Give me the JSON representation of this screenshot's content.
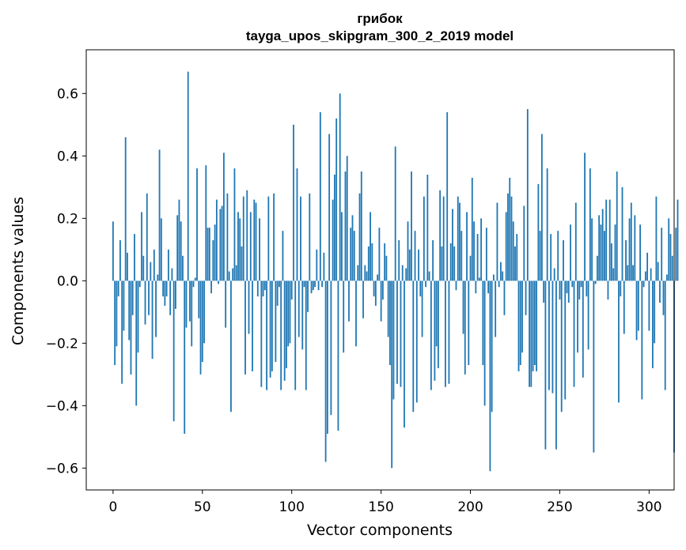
{
  "chart_data": {
    "type": "bar",
    "title": "грибок",
    "subtitle": "tayga_upos_skipgram_300_2_2019 model",
    "xlabel": "Vector components",
    "ylabel": "Components values",
    "xlim": [
      -15,
      314
    ],
    "ylim": [
      -0.67,
      0.74
    ],
    "xticks": [
      0,
      50,
      100,
      150,
      200,
      250,
      300
    ],
    "xtick_labels": [
      "0",
      "50",
      "100",
      "150",
      "200",
      "250",
      "300"
    ],
    "yticks": [
      -0.6,
      -0.4,
      -0.2,
      0.0,
      0.2,
      0.4,
      0.6
    ],
    "ytick_labels": [
      "−0.6",
      "−0.4",
      "−0.2",
      "0.0",
      "0.2",
      "0.4",
      "0.6"
    ],
    "bar_color": "#1f77b4",
    "series": [
      {
        "name": "грибок",
        "values": [
          0.19,
          -0.27,
          -0.21,
          -0.05,
          0.13,
          -0.33,
          -0.16,
          0.46,
          0.09,
          -0.19,
          -0.3,
          -0.11,
          0.15,
          -0.4,
          -0.23,
          -0.02,
          0.22,
          0.08,
          -0.14,
          0.28,
          -0.11,
          0.06,
          -0.25,
          0.1,
          -0.18,
          0.02,
          0.42,
          0.2,
          -0.05,
          -0.08,
          -0.05,
          0.1,
          -0.11,
          0.04,
          -0.45,
          -0.09,
          0.21,
          0.26,
          0.19,
          0.08,
          -0.49,
          -0.15,
          0.67,
          -0.13,
          -0.21,
          -0.02,
          0.01,
          0.36,
          -0.12,
          -0.3,
          -0.26,
          -0.2,
          0.37,
          0.17,
          0.17,
          -0.04,
          0.13,
          0.18,
          0.26,
          -0.01,
          0.23,
          0.24,
          0.41,
          -0.15,
          0.28,
          0.03,
          -0.42,
          0.04,
          0.36,
          0.05,
          0.22,
          0.2,
          0.11,
          0.27,
          -0.3,
          0.29,
          -0.17,
          0.22,
          -0.29,
          0.26,
          0.25,
          -0.05,
          0.2,
          -0.34,
          -0.05,
          -0.03,
          -0.35,
          0.27,
          -0.31,
          -0.29,
          0.28,
          -0.26,
          -0.08,
          -0.02,
          -0.35,
          0.16,
          -0.32,
          -0.28,
          -0.21,
          -0.2,
          -0.06,
          0.5,
          -0.35,
          0.36,
          -0.18,
          0.27,
          -0.22,
          -0.02,
          -0.35,
          -0.1,
          0.28,
          -0.04,
          -0.03,
          -0.02,
          0.1,
          -0.03,
          0.54,
          -0.02,
          0.09,
          -0.58,
          -0.49,
          0.47,
          -0.43,
          0.26,
          0.34,
          0.52,
          -0.48,
          0.6,
          0.22,
          -0.23,
          0.35,
          0.4,
          -0.13,
          0.17,
          0.21,
          0.16,
          -0.21,
          0.05,
          0.28,
          0.35,
          -0.12,
          0.05,
          0.03,
          0.11,
          0.22,
          0.12,
          -0.05,
          -0.08,
          0.02,
          0.17,
          -0.13,
          -0.06,
          0.12,
          0.08,
          -0.18,
          -0.27,
          -0.6,
          -0.38,
          0.43,
          -0.33,
          0.13,
          -0.34,
          0.05,
          -0.47,
          0.04,
          0.19,
          0.1,
          0.35,
          -0.42,
          0.16,
          -0.39,
          0.1,
          -0.05,
          -0.18,
          0.27,
          -0.02,
          0.34,
          0.03,
          -0.35,
          0.13,
          -0.32,
          -0.21,
          -0.28,
          0.29,
          0.11,
          0.27,
          -0.34,
          0.54,
          -0.33,
          0.12,
          0.23,
          0.11,
          -0.03,
          0.27,
          0.25,
          0.16,
          -0.17,
          -0.3,
          0.22,
          -0.27,
          0.08,
          0.33,
          0.19,
          -0.04,
          0.15,
          0.01,
          0.2,
          -0.27,
          -0.4,
          0.17,
          -0.04,
          -0.61,
          -0.42,
          0.02,
          -0.18,
          0.25,
          -0.02,
          0.06,
          0.03,
          -0.11,
          0.22,
          0.28,
          0.33,
          0.27,
          0.19,
          0.11,
          0.15,
          -0.29,
          -0.27,
          -0.23,
          0.24,
          -0.11,
          0.55,
          -0.34,
          -0.34,
          -0.29,
          -0.27,
          -0.29,
          0.31,
          0.16,
          0.47,
          -0.07,
          -0.54,
          0.36,
          -0.35,
          0.15,
          -0.36,
          0.04,
          -0.54,
          0.16,
          -0.06,
          -0.42,
          0.13,
          -0.38,
          -0.04,
          -0.07,
          0.18,
          -0.02,
          -0.34,
          0.25,
          -0.23,
          -0.06,
          -0.02,
          -0.31,
          0.41,
          -0.05,
          -0.22,
          0.36,
          0.2,
          -0.55,
          -0.01,
          0.08,
          0.21,
          0.18,
          0.23,
          0.16,
          0.26,
          -0.06,
          0.26,
          0.12,
          0.04,
          0.18,
          0.35,
          -0.39,
          -0.05,
          0.3,
          -0.17,
          0.13,
          0.05,
          0.2,
          0.25,
          0.05,
          0.21,
          -0.19,
          -0.16,
          0.18,
          -0.38,
          -0.02,
          0.03,
          0.09,
          -0.16,
          0.04,
          -0.28,
          -0.2,
          0.27,
          0.06,
          -0.07,
          0.17,
          -0.11,
          -0.35,
          0.02,
          0.2,
          0.15,
          0.08,
          -0.55,
          0.17,
          0.26
        ]
      }
    ]
  }
}
